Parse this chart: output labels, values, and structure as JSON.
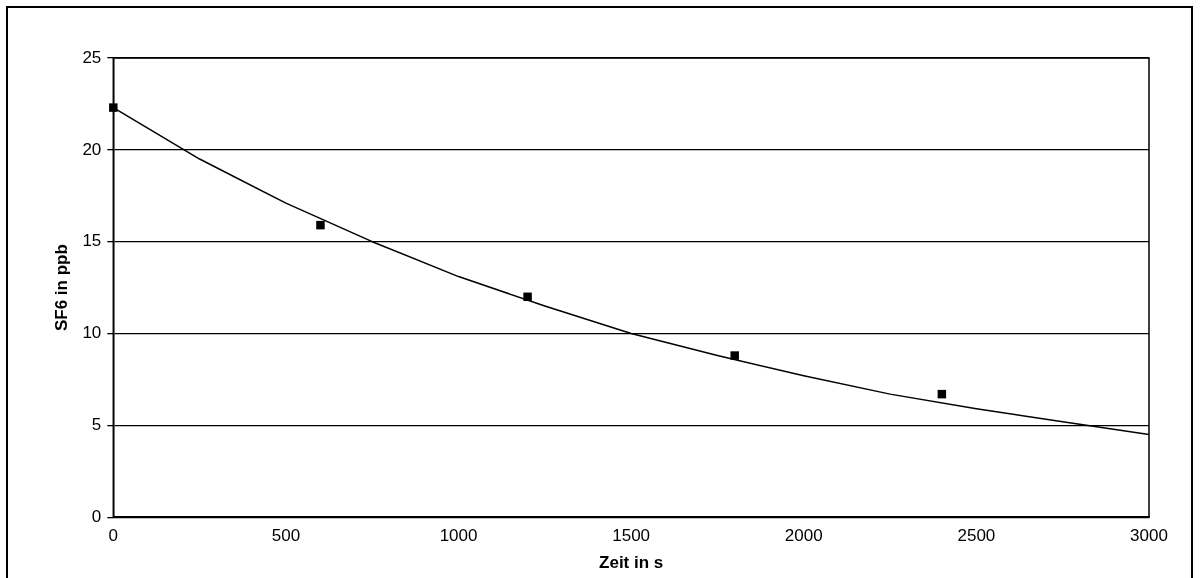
{
  "chart_data": {
    "type": "scatter",
    "xlabel": "Zeit in s",
    "ylabel": "SF6 in ppb",
    "xlim": [
      0,
      3000
    ],
    "xticks": [
      0,
      500,
      1000,
      1500,
      2000,
      2500,
      3000
    ],
    "ylim": [
      0,
      25
    ],
    "yticks": [
      0,
      5,
      10,
      15,
      20,
      25
    ],
    "grid": "y",
    "legend": false,
    "series": [
      {
        "marker": "square",
        "color": "#000000",
        "x": [
          0,
          600,
          1200,
          1800,
          2400
        ],
        "values": [
          22.3,
          15.9,
          12.0,
          8.8,
          6.7
        ]
      },
      {
        "type": "line",
        "marker": "none",
        "color": "#000000",
        "x": [
          0,
          250,
          500,
          750,
          1000,
          1250,
          1500,
          1750,
          2000,
          2250,
          2500,
          2750,
          3000
        ],
        "values": [
          22.3,
          19.5,
          17.1,
          15.0,
          13.1,
          11.5,
          10.0,
          8.8,
          7.7,
          6.7,
          5.9,
          5.2,
          4.5
        ]
      }
    ]
  }
}
